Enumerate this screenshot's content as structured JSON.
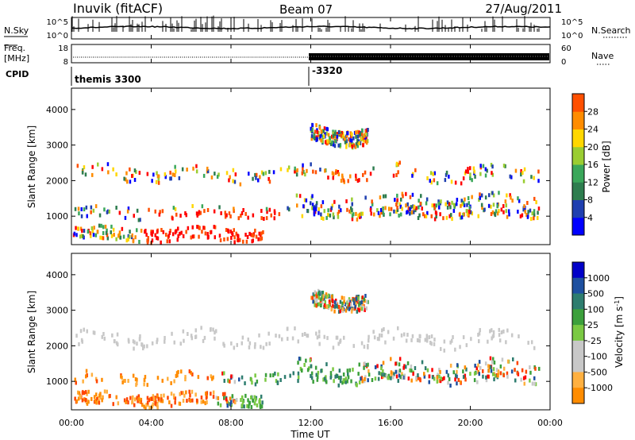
{
  "header": {
    "station": "Inuvik (fitACF)",
    "beam": "Beam 07",
    "date": "27/Aug/2011"
  },
  "noise_panel": {
    "left_label": "N.Sky",
    "right_label": "N.Search",
    "left_ticks": [
      "10^5",
      "10^0"
    ],
    "right_ticks": [
      "10^5",
      "10^0"
    ]
  },
  "freq_panel": {
    "left_label_line1": "Freq.",
    "left_label_line2": "[MHz]",
    "right_label": "Nave",
    "left_ticks": [
      "18",
      "8"
    ],
    "right_ticks": [
      "60",
      "0"
    ]
  },
  "cpid_panel": {
    "label": "CPID",
    "cpids": [
      {
        "label": "themis 3300",
        "start_ut": "00:00"
      },
      {
        "label": "-3320",
        "start_ut": "12:00"
      }
    ]
  },
  "colors": {
    "power": [
      "#0000ff",
      "#1f3fb0",
      "#2e7d4f",
      "#3aa75a",
      "#9acd32",
      "#ffd700",
      "#ff8c00",
      "#ff5000",
      "#ff0000"
    ],
    "velocity": [
      "#ff0000",
      "#ff4500",
      "#ff8c00",
      "#ffb040",
      "#c8c8c8",
      "#c8c8c8",
      "#7ac943",
      "#3ca03c",
      "#2e7d6f",
      "#1e50a0",
      "#0000c8"
    ]
  },
  "chart_data": [
    {
      "type": "heatmap",
      "panel": "power",
      "ylabel": "Slant Range [km]",
      "xlim": [
        "00:00",
        "00:00"
      ],
      "ylim": [
        200,
        4600
      ],
      "yticks": [
        1000,
        2000,
        3000,
        4000
      ],
      "colorbar_label": "Power [dB]",
      "colorbar_ticks": [
        4,
        8,
        12,
        16,
        20,
        24,
        28
      ],
      "colorbar_range": [
        0,
        32
      ]
    },
    {
      "type": "heatmap",
      "panel": "velocity",
      "ylabel": "Slant Range [km]",
      "xlabel": "Time UT",
      "xticks": [
        "00:00",
        "04:00",
        "08:00",
        "12:00",
        "16:00",
        "20:00",
        "00:00"
      ],
      "ylim": [
        200,
        4600
      ],
      "yticks": [
        1000,
        2000,
        3000,
        4000
      ],
      "colorbar_label": "Velocity [m s^-1]",
      "colorbar_ticks": [
        "1000",
        "500",
        "100",
        "25",
        "-25",
        "-100",
        "-500",
        "-1000"
      ]
    }
  ]
}
